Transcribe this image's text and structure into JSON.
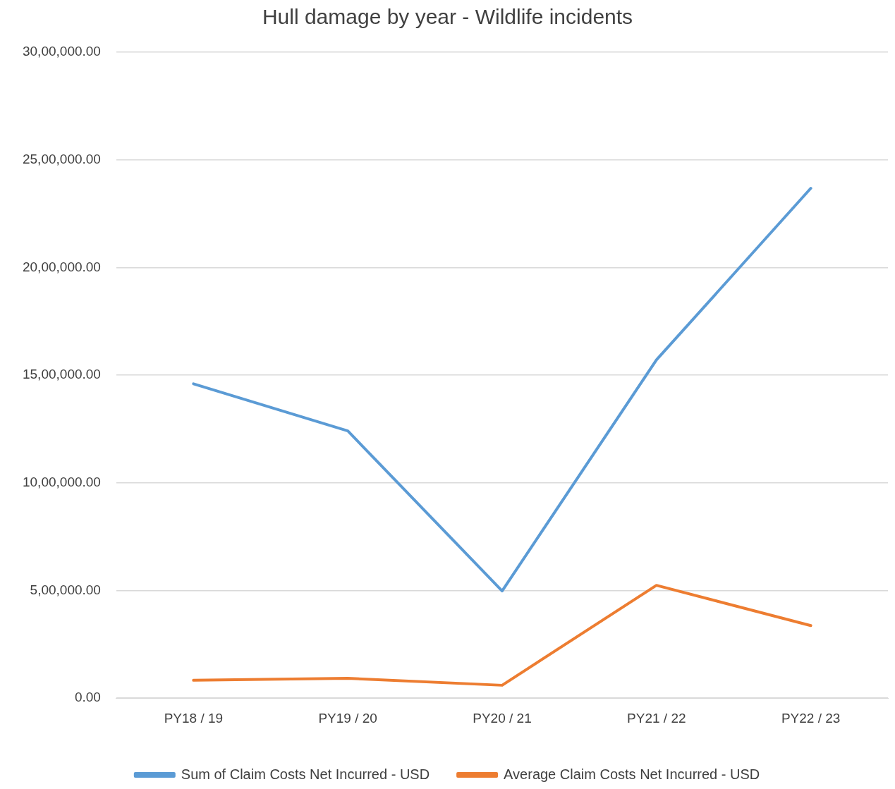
{
  "chart_data": {
    "type": "line",
    "title": "Hull damage by year - Wildlife incidents",
    "categories": [
      "PY18 / 19",
      "PY19 / 20",
      "PY20 / 21",
      "PY21 / 22",
      "PY22 / 23"
    ],
    "series": [
      {
        "name": "Sum of Claim Costs Net Incurred - USD",
        "color": "#5b9bd5",
        "values": [
          1460000,
          1241000,
          498000,
          1571000,
          2368000
        ]
      },
      {
        "name": "Average Claim Costs Net Incurred - USD",
        "color": "#ed7d31",
        "values": [
          83000,
          92000,
          60000,
          524000,
          337000
        ]
      }
    ],
    "ylim": [
      0,
      3000000
    ],
    "yticks": [
      {
        "value": 0,
        "label": "0.00"
      },
      {
        "value": 500000,
        "label": "5,00,000.00"
      },
      {
        "value": 1000000,
        "label": "10,00,000.00"
      },
      {
        "value": 1500000,
        "label": "15,00,000.00"
      },
      {
        "value": 2000000,
        "label": "20,00,000.00"
      },
      {
        "value": 2500000,
        "label": "25,00,000.00"
      },
      {
        "value": 3000000,
        "label": "30,00,000.00"
      }
    ],
    "grid": "y",
    "legend": "bottom",
    "marker": "none",
    "line_style": "solid"
  }
}
